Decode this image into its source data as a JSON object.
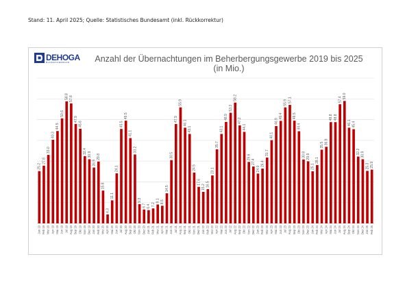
{
  "source_note": "Stand: 11. April 2025; Quelle: Statistisches Bundesamt (inkl. Rückkorrektur)",
  "logo": {
    "text": "DEHOGA",
    "sub": "BUNDESVERBAND",
    "icon": "dehoga-logo-icon"
  },
  "chart_data": {
    "type": "bar",
    "title": "Anzahl der Übernachtungen im Beherbergungsgewerbe 2019 bis 2025",
    "subtitle": "(in Mio.)",
    "xlabel": "",
    "ylabel": "",
    "ylim": [
      0,
      70
    ],
    "grid": true,
    "legend": "none",
    "bar_color": "#c00000",
    "categories": [
      "Jan 19",
      "Feb 19",
      "Mrz 19",
      "Apr 19",
      "Mai 19",
      "Jun 19",
      "Jul 19",
      "Aug 19",
      "Sep 19",
      "Okt 19",
      "Nov 19",
      "Dez 19",
      "Jan 20",
      "Feb 20",
      "Mrz 20",
      "Apr 20",
      "Mai 20",
      "Jun 20",
      "Jul 20",
      "Aug 20",
      "Sep 20",
      "Okt 20",
      "Nov 20",
      "Dez 20",
      "Jan 21",
      "Feb 21",
      "Mrz 21",
      "Apr 21",
      "Mai 21",
      "Jun 21",
      "Jul 21",
      "Aug 21",
      "Sep 21",
      "Okt 21",
      "Nov 21",
      "Dez 21",
      "Jan 22",
      "Feb 22",
      "Mrz 22",
      "Apr 22",
      "Mai 22",
      "Jun 22",
      "Jul 22",
      "Aug 22",
      "Sep 22",
      "Okt 22",
      "Nov 22",
      "Dez 22",
      "Jan 23",
      "Feb 23",
      "Mrz 23",
      "Apr 23",
      "Mai 23",
      "Jun 23",
      "Jul 23",
      "Aug 23",
      "Sep 23",
      "Okt 23",
      "Nov 23",
      "Dez 23",
      "Jan 24",
      "Feb 24",
      "Mrz 24",
      "Apr 24",
      "Mai 24",
      "Jun 24",
      "Jul 24",
      "Aug 24",
      "Sep 24",
      "Okt 24",
      "Nov 24",
      "Dez 24",
      "Jan 25",
      "Feb 25"
    ],
    "values": [
      25.2,
      27.8,
      33.0,
      40.3,
      44.5,
      50.6,
      58.8,
      57.8,
      47.9,
      45.6,
      32.4,
      30.9,
      26.9,
      29.8,
      15.8,
      4.3,
      11.1,
      24.1,
      45.5,
      49.5,
      41.1,
      33.2,
      9.3,
      6.7,
      6.4,
      7.2,
      9.1,
      8.5,
      14.5,
      30.5,
      47.9,
      55.9,
      46.1,
      43.1,
      24.5,
      17.6,
      15.2,
      16.5,
      23.1,
      35.7,
      43.1,
      48.9,
      53.3,
      58.2,
      47.2,
      44.1,
      29.6,
      27.4,
      24.0,
      26.4,
      31.7,
      40.1,
      46.9,
      49.4,
      55.9,
      57.1,
      49.5,
      44.4,
      30.8,
      29.9,
      25.1,
      28.1,
      35.5,
      36.9,
      48.8,
      48.8,
      57.4,
      59.0,
      46.1,
      45.4,
      32.2,
      30.9,
      25.3,
      25.9
    ]
  }
}
